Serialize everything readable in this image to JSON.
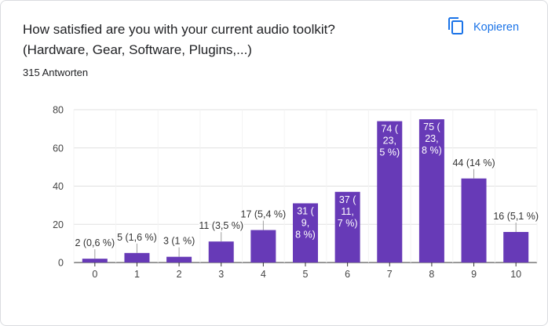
{
  "header": {
    "title": "How satisfied are you with your current audio toolkit?\n(Hardware, Gear, Software, Plugins,...)",
    "responses": "315 Antworten",
    "copy_label": "Kopieren",
    "copy_icon": "copy-icon"
  },
  "colors": {
    "bar": "#673ab7",
    "accent": "#1a73e8",
    "grid": "#e0e0e0"
  },
  "chart_data": {
    "type": "bar",
    "title": "How satisfied are you with your current audio toolkit? (Hardware, Gear, Software, Plugins,...)",
    "xlabel": "",
    "ylabel": "",
    "ylim": [
      0,
      80
    ],
    "yticks": [
      0,
      20,
      40,
      60,
      80
    ],
    "categories": [
      "0",
      "1",
      "2",
      "3",
      "4",
      "5",
      "6",
      "7",
      "8",
      "9",
      "10"
    ],
    "values": [
      2,
      5,
      3,
      11,
      17,
      31,
      37,
      74,
      75,
      44,
      16
    ],
    "labels": [
      "2 (0,6 %)",
      "5 (1,6 %)",
      "3 (1 %)",
      "11 (3,5 %)",
      "17 (5,4 %)",
      "31 (9,8 %)",
      "37 (11,7 %)",
      "74 (23,5 %)",
      "75 (23,8 %)",
      "44 (14 %)",
      "16 (5,1 %)"
    ],
    "label_lines": [
      [
        "2 (0,6 %)"
      ],
      [
        "5 (1,6 %)"
      ],
      [
        "3 (1 %)"
      ],
      [
        "11 (3,5 %)"
      ],
      [
        "17 (5,4 %)"
      ],
      [
        "31 (",
        "9,",
        "8 %)"
      ],
      [
        "37 (",
        "11,",
        "7 %)"
      ],
      [
        "74 (",
        "23,",
        "5 %)"
      ],
      [
        "75 (",
        "23,",
        "8 %)"
      ],
      [
        "44 (14 %)"
      ],
      [
        "16 (5,1 %)"
      ]
    ],
    "grid": true,
    "legend": "none"
  }
}
